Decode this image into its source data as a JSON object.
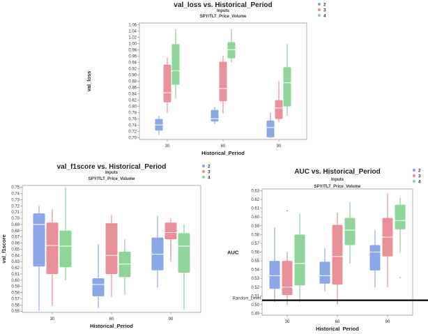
{
  "chart_data": [
    {
      "type": "boxplot",
      "title": "val_loss vs. Historical_Period",
      "subtitle1": "Inputs",
      "subtitle2": "SPY/TLT_Price_Volume",
      "xlabel": "Historical_Period",
      "ylabel": "val_loss",
      "categories": [
        "30",
        "60",
        "90"
      ],
      "ylim": [
        0.695,
        1.065
      ],
      "yticks": [
        "0.70",
        "0.72",
        "0.74",
        "0.76",
        "0.78",
        "0.80",
        "0.82",
        "0.84",
        "0.86",
        "0.88",
        "0.90",
        "0.92",
        "0.94",
        "0.96",
        "0.98",
        "1.00",
        "1.02",
        "1.04",
        "1.06"
      ],
      "legend": [
        {
          "name": "2",
          "color": "#8aa7e8"
        },
        {
          "name": "3",
          "color": "#e8919a"
        },
        {
          "name": "4",
          "color": "#8fd49a"
        }
      ],
      "boxes": [
        {
          "category": "30",
          "series": "2",
          "min": 0.71,
          "q1": 0.723,
          "median": 0.741,
          "q3": 0.76,
          "max": 0.77
        },
        {
          "category": "30",
          "series": "3",
          "min": 0.78,
          "q1": 0.813,
          "median": 0.843,
          "q3": 0.933,
          "max": 0.955
        },
        {
          "category": "30",
          "series": "4",
          "min": 0.826,
          "q1": 0.869,
          "median": 0.913,
          "q3": 0.998,
          "max": 1.046
        },
        {
          "category": "60",
          "series": "2",
          "min": 0.745,
          "q1": 0.752,
          "median": 0.761,
          "q3": 0.789,
          "max": 0.798
        },
        {
          "category": "60",
          "series": "3",
          "min": 0.778,
          "q1": 0.816,
          "median": 0.857,
          "q3": 0.942,
          "max": 0.962
        },
        {
          "category": "60",
          "series": "4",
          "min": 0.94,
          "q1": 0.953,
          "median": 0.98,
          "q3": 1.004,
          "max": 1.046
        },
        {
          "category": "90",
          "series": "2",
          "min": 0.7,
          "q1": 0.702,
          "median": 0.733,
          "q3": 0.755,
          "max": 0.78
        },
        {
          "category": "90",
          "series": "3",
          "min": 0.75,
          "q1": 0.76,
          "median": 0.795,
          "q3": 0.82,
          "max": 0.88
        },
        {
          "category": "90",
          "series": "4",
          "min": 0.77,
          "q1": 0.8,
          "median": 0.875,
          "q3": 0.925,
          "max": 0.998
        }
      ]
    },
    {
      "type": "boxplot",
      "title": "val_f1score vs. Historical_Period",
      "subtitle1": "Inputs",
      "subtitle2": "SPY/TLT_Price_Volume",
      "xlabel": "Historical_Period",
      "ylabel": "val_f1score",
      "categories": [
        "30",
        "60",
        "90"
      ],
      "ylim": [
        0.548,
        0.753
      ],
      "yticks": [
        "0.55",
        "0.56",
        "0.57",
        "0.58",
        "0.59",
        "0.60",
        "0.61",
        "0.62",
        "0.63",
        "0.64",
        "0.65",
        "0.66",
        "0.67",
        "0.68",
        "0.69",
        "0.70",
        "0.71",
        "0.72",
        "0.73",
        "0.74",
        "0.75"
      ],
      "legend": [
        {
          "name": "2",
          "color": "#8aa7e8"
        },
        {
          "name": "3",
          "color": "#e8919a"
        },
        {
          "name": "4",
          "color": "#8fd49a"
        }
      ],
      "boxes": [
        {
          "category": "30",
          "series": "2",
          "min": 0.55,
          "q1": 0.622,
          "median": 0.69,
          "q3": 0.708,
          "max": 0.72
        },
        {
          "category": "30",
          "series": "3",
          "min": 0.558,
          "q1": 0.61,
          "median": 0.656,
          "q3": 0.693,
          "max": 0.715
        },
        {
          "category": "30",
          "series": "4",
          "min": 0.6,
          "q1": 0.621,
          "median": 0.655,
          "q3": 0.68,
          "max": 0.75
        },
        {
          "category": "60",
          "series": "2",
          "min": 0.555,
          "q1": 0.574,
          "median": 0.593,
          "q3": 0.603,
          "max": 0.658
        },
        {
          "category": "60",
          "series": "3",
          "min": 0.573,
          "q1": 0.61,
          "median": 0.64,
          "q3": 0.692,
          "max": 0.705
        },
        {
          "category": "60",
          "series": "4",
          "min": 0.576,
          "q1": 0.605,
          "median": 0.626,
          "q3": 0.646,
          "max": 0.666
        },
        {
          "category": "90",
          "series": "2",
          "min": 0.588,
          "q1": 0.616,
          "median": 0.642,
          "q3": 0.669,
          "max": 0.704
        },
        {
          "category": "90",
          "series": "3",
          "min": 0.63,
          "q1": 0.666,
          "median": 0.677,
          "q3": 0.693,
          "max": 0.7
        },
        {
          "category": "90",
          "series": "4",
          "min": 0.553,
          "q1": 0.612,
          "median": 0.655,
          "q3": 0.676,
          "max": 0.69
        }
      ]
    },
    {
      "type": "boxplot",
      "title": "AUC vs. Historical_Period",
      "subtitle1": "Inputs",
      "subtitle2": "SPY/TLT_Price_Volume",
      "xlabel": "Historical_Period",
      "ylabel": "AUC",
      "categories": [
        "30",
        "60",
        "90"
      ],
      "ylim": [
        0.488,
        0.632
      ],
      "yticks": [
        "0.49",
        "0.50",
        "0.51",
        "0.52",
        "0.53",
        "0.54",
        "0.55",
        "0.56",
        "0.57",
        "0.58",
        "0.59",
        "0.60",
        "0.61",
        "0.62",
        "0.63"
      ],
      "reference_line": {
        "label": "Random_Level",
        "value": 0.505
      },
      "legend": [
        {
          "name": "2",
          "color": "#8aa7e8"
        },
        {
          "name": "3",
          "color": "#e8919a"
        },
        {
          "name": "4",
          "color": "#8fd49a"
        }
      ],
      "boxes": [
        {
          "category": "30",
          "series": "2",
          "min": 0.503,
          "q1": 0.518,
          "median": 0.533,
          "q3": 0.55,
          "max": 0.588
        },
        {
          "category": "30",
          "series": "3",
          "min": 0.5,
          "q1": 0.511,
          "median": 0.52,
          "q3": 0.55,
          "max": 0.56,
          "outliers": [
            0.607
          ]
        },
        {
          "category": "30",
          "series": "4",
          "min": 0.503,
          "q1": 0.522,
          "median": 0.547,
          "q3": 0.58,
          "max": 0.604
        },
        {
          "category": "60",
          "series": "2",
          "min": 0.515,
          "q1": 0.524,
          "median": 0.533,
          "q3": 0.549,
          "max": 0.564
        },
        {
          "category": "60",
          "series": "3",
          "min": 0.5,
          "q1": 0.523,
          "median": 0.555,
          "q3": 0.591,
          "max": 0.605,
          "outliers": [
            0.502
          ]
        },
        {
          "category": "60",
          "series": "4",
          "min": 0.547,
          "q1": 0.568,
          "median": 0.585,
          "q3": 0.599,
          "max": 0.617
        },
        {
          "category": "90",
          "series": "2",
          "min": 0.52,
          "q1": 0.539,
          "median": 0.56,
          "q3": 0.568,
          "max": 0.585
        },
        {
          "category": "90",
          "series": "3",
          "min": 0.52,
          "q1": 0.555,
          "median": 0.577,
          "q3": 0.599,
          "max": 0.627
        },
        {
          "category": "90",
          "series": "4",
          "min": 0.56,
          "q1": 0.586,
          "median": 0.596,
          "q3": 0.614,
          "max": 0.622,
          "outliers": [
            0.531
          ]
        }
      ]
    }
  ]
}
